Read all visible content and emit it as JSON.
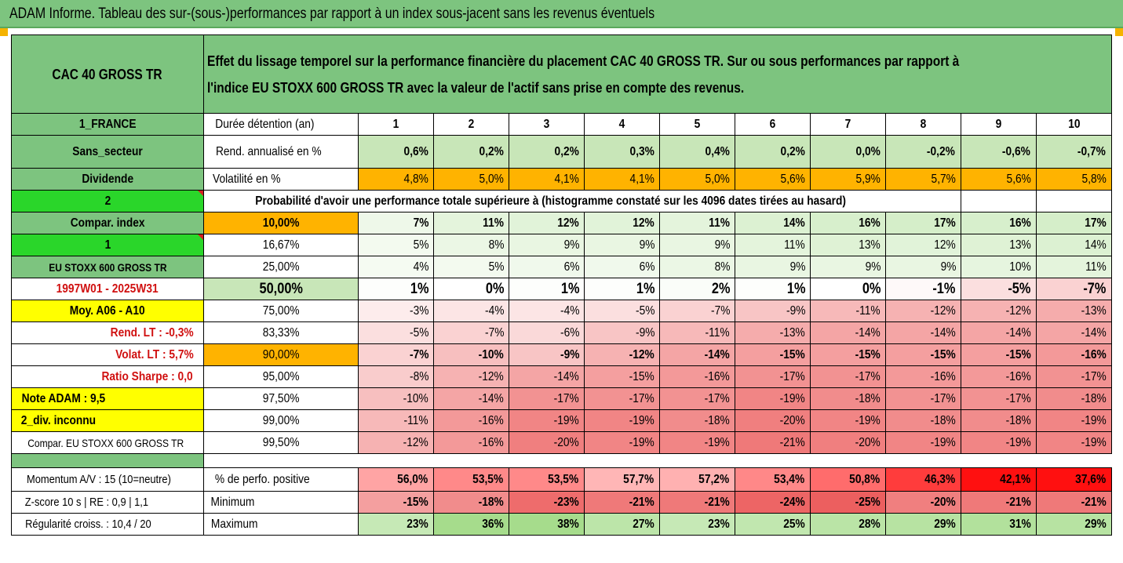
{
  "title": "ADAM Informe. Tableau des sur-(sous-)performances par rapport à un index sous-jacent sans les revenus éventuels",
  "header": {
    "fund": "CAC 40 GROSS TR",
    "description_line1": "Effet du lissage temporel sur la performance financière du placement CAC 40 GROSS TR. Sur ou sous performances par rapport à",
    "description_line2": "l'indice EU STOXX 600 GROSS TR avec la valeur de l'actif sans prise en compte des revenus."
  },
  "left_labels": {
    "country": "1_FRANCE",
    "sector": "Sans_secteur",
    "dividend": "Dividende",
    "two": "2",
    "compar_index": "Compar. index",
    "one": "1",
    "index_name": "EU STOXX 600 GROSS TR",
    "period": "1997W01 - 2025W31",
    "moy": "Moy. A06 - A10",
    "rend_lt": "Rend. LT :   -0,3%",
    "volat_lt": "Volat. LT :   5,7%",
    "sharpe": "Ratio Sharpe :   0,0",
    "note": "Note ADAM : 9,5",
    "div": "2_div. inconnu",
    "compar2": "Compar. EU STOXX 600 GROSS TR",
    "momentum": "Momentum A/V : 15 (10=neutre)",
    "zscore": "Z-score 10 s  |  RE : 0,9  |  1,1",
    "regularite": "Régularité croiss. : 10,4 / 20"
  },
  "row_labels": {
    "duree": "Durée détention (an)",
    "rend": "Rend. annualisé en %",
    "volat": "Volatilité en %",
    "proba": "Probabilité d'avoir une performance totale supérieure à (histogramme constaté sur les 4096 dates tirées au hasard)",
    "perf_pos": "% de perfo. positive",
    "minimum": "Minimum",
    "maximum": "Maximum"
  },
  "years": [
    "1",
    "2",
    "3",
    "4",
    "5",
    "6",
    "7",
    "8",
    "9",
    "10"
  ],
  "rend": [
    "0,6%",
    "0,2%",
    "0,2%",
    "0,3%",
    "0,4%",
    "0,2%",
    "0,0%",
    "-0,2%",
    "-0,6%",
    "-0,7%"
  ],
  "volat": [
    "4,8%",
    "5,0%",
    "4,1%",
    "4,1%",
    "5,0%",
    "5,6%",
    "5,9%",
    "5,7%",
    "5,6%",
    "5,8%"
  ],
  "percentile_rows": [
    {
      "pct": "10,00%",
      "values": [
        "7%",
        "11%",
        "12%",
        "12%",
        "11%",
        "14%",
        "16%",
        "17%",
        "16%",
        "17%"
      ]
    },
    {
      "pct": "16,67%",
      "values": [
        "5%",
        "8%",
        "9%",
        "9%",
        "9%",
        "11%",
        "13%",
        "12%",
        "13%",
        "14%"
      ]
    },
    {
      "pct": "25,00%",
      "values": [
        "4%",
        "5%",
        "6%",
        "6%",
        "8%",
        "9%",
        "9%",
        "9%",
        "10%",
        "11%"
      ]
    },
    {
      "pct": "50,00%",
      "values": [
        "1%",
        "0%",
        "1%",
        "1%",
        "2%",
        "1%",
        "0%",
        "-1%",
        "-5%",
        "-7%"
      ]
    },
    {
      "pct": "75,00%",
      "values": [
        "-3%",
        "-4%",
        "-4%",
        "-5%",
        "-7%",
        "-9%",
        "-11%",
        "-12%",
        "-12%",
        "-13%"
      ]
    },
    {
      "pct": "83,33%",
      "values": [
        "-5%",
        "-7%",
        "-6%",
        "-9%",
        "-11%",
        "-13%",
        "-14%",
        "-14%",
        "-14%",
        "-14%"
      ]
    },
    {
      "pct": "90,00%",
      "values": [
        "-7%",
        "-10%",
        "-9%",
        "-12%",
        "-14%",
        "-15%",
        "-15%",
        "-15%",
        "-15%",
        "-16%"
      ]
    },
    {
      "pct": "95,00%",
      "values": [
        "-8%",
        "-12%",
        "-14%",
        "-15%",
        "-16%",
        "-17%",
        "-17%",
        "-16%",
        "-16%",
        "-17%"
      ]
    },
    {
      "pct": "97,50%",
      "values": [
        "-10%",
        "-14%",
        "-17%",
        "-17%",
        "-17%",
        "-19%",
        "-18%",
        "-17%",
        "-17%",
        "-18%"
      ]
    },
    {
      "pct": "99,00%",
      "values": [
        "-11%",
        "-16%",
        "-19%",
        "-19%",
        "-18%",
        "-20%",
        "-19%",
        "-18%",
        "-18%",
        "-19%"
      ]
    },
    {
      "pct": "99,50%",
      "values": [
        "-12%",
        "-16%",
        "-20%",
        "-19%",
        "-19%",
        "-21%",
        "-20%",
        "-19%",
        "-19%",
        "-19%"
      ]
    }
  ],
  "perf_pos": [
    "56,0%",
    "53,5%",
    "53,5%",
    "57,7%",
    "57,2%",
    "53,4%",
    "50,8%",
    "46,3%",
    "42,1%",
    "37,6%"
  ],
  "minimum": [
    "-15%",
    "-18%",
    "-23%",
    "-21%",
    "-21%",
    "-24%",
    "-25%",
    "-20%",
    "-21%",
    "-21%"
  ],
  "maximum": [
    "23%",
    "36%",
    "38%",
    "27%",
    "23%",
    "25%",
    "28%",
    "29%",
    "31%",
    "29%"
  ],
  "colors": {
    "header_green": "#7dc47f",
    "bright_green": "#2ad62a",
    "yellow": "#ffff00",
    "orange": "#ffb300",
    "red_text": "#d01010"
  }
}
